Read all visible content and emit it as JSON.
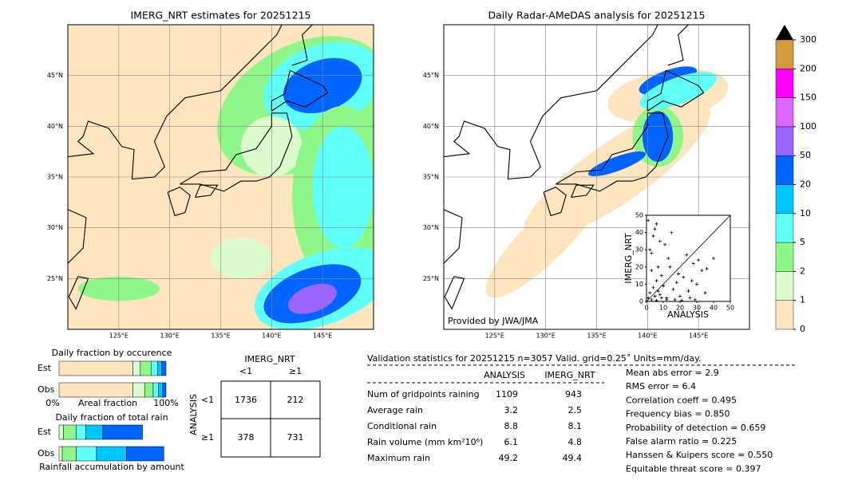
{
  "left_map": {
    "title": "IMERG_NRT estimates for 20251215",
    "lat_labels": [
      "45°N",
      "40°N",
      "35°N",
      "30°N",
      "25°N"
    ],
    "lon_labels": [
      "125°E",
      "130°E",
      "135°E",
      "140°E",
      "145°E"
    ]
  },
  "right_map": {
    "title": "Daily Radar-AMeDAS analysis for 20251215",
    "lat_labels": [
      "45°N",
      "40°N",
      "35°N",
      "30°N",
      "25°N"
    ],
    "lon_labels": [
      "125°E",
      "130°E",
      "135°E",
      "140°E",
      "145°E"
    ],
    "credit": "Provided by JWA/JMA"
  },
  "scatter": {
    "xlabel": "ANALYSIS",
    "ylabel": "IMERG_NRT",
    "xlim": [
      0,
      50
    ],
    "ylim": [
      0,
      50
    ],
    "xticks": [
      0,
      10,
      20,
      30,
      40,
      50
    ],
    "yticks": [
      0,
      10,
      20,
      30,
      40,
      50
    ],
    "x": [
      1,
      2,
      3,
      4,
      5,
      6,
      7,
      8,
      9,
      10,
      12,
      14,
      16,
      18,
      20,
      22,
      25,
      28,
      30,
      33,
      35,
      40,
      2,
      4,
      6,
      8,
      3,
      5,
      7,
      11,
      13,
      15,
      19,
      24,
      27,
      31,
      36,
      1,
      3,
      9,
      12,
      6,
      17,
      21,
      26,
      29
    ],
    "y": [
      2,
      5,
      1,
      8,
      3,
      12,
      6,
      4,
      15,
      9,
      2,
      20,
      7,
      11,
      3,
      14,
      6,
      22,
      10,
      18,
      5,
      25,
      30,
      38,
      45,
      35,
      28,
      42,
      20,
      33,
      25,
      40,
      16,
      27,
      12,
      24,
      19,
      47,
      18,
      2,
      1,
      0.5,
      1,
      0.5,
      2,
      1
    ]
  },
  "colorbar": {
    "ticks": [
      "0",
      "1",
      "2",
      "5",
      "10",
      "20",
      "50",
      "100",
      "150",
      "200",
      "300"
    ],
    "colors": [
      "#fde6bf",
      "#dcfbcf",
      "#8ff78a",
      "#5ffff7",
      "#00c8ff",
      "#0064ff",
      "#9966ff",
      "#dd66ff",
      "#ff00ff",
      "#d49a3c"
    ]
  },
  "occurrence": {
    "title": "Daily fraction by occurence",
    "rows": [
      "Est",
      "Obs"
    ],
    "xlabel": "Areal fraction",
    "xmin_label": "0%",
    "xmax_label": "100%",
    "colors": [
      "#fde6bf",
      "#dcfbcf",
      "#8ff78a",
      "#5ffff7",
      "#00c8ff",
      "#0064ff"
    ],
    "values": [
      [
        0.69,
        0.07,
        0.1,
        0.06,
        0.04,
        0.04
      ],
      [
        0.69,
        0.11,
        0.08,
        0.05,
        0.04,
        0.03
      ]
    ]
  },
  "total_rain": {
    "title": "Daily fraction of total rain",
    "rows": [
      "Est",
      "Obs"
    ],
    "xlabel": "Rainfall accumulation by amount",
    "colors": [
      "#dcfbcf",
      "#8ff78a",
      "#5ffff7",
      "#00c8ff",
      "#0064ff"
    ],
    "values": [
      [
        0.04,
        0.12,
        0.09,
        0.16,
        0.37
      ],
      [
        0.03,
        0.13,
        0.19,
        0.28,
        0.35
      ]
    ]
  },
  "contingency": {
    "col_title": "IMERG_NRT",
    "row_title": "ANALYSIS",
    "cols": [
      "<1",
      "≥1"
    ],
    "rows": [
      "<1",
      "≥1"
    ],
    "cells": [
      [
        "1736",
        "212"
      ],
      [
        "378",
        "731"
      ]
    ]
  },
  "stats": {
    "header": "Validation statistics for 20251215  n=3057 Valid. grid=0.25˚ Units=mm/day.",
    "columns": [
      "ANALYSIS",
      "IMERG_NRT"
    ],
    "rows": [
      [
        "Num of gridpoints raining",
        "1109",
        "943"
      ],
      [
        "Average rain",
        "3.2",
        "2.5"
      ],
      [
        "Conditional rain",
        "8.8",
        "8.1"
      ],
      [
        "Rain volume (mm km²10⁶)",
        "6.1",
        "4.8"
      ],
      [
        "Maximum rain",
        "49.2",
        "49.4"
      ]
    ],
    "scores": [
      "Mean abs error =    2.9",
      "RMS error =    6.4",
      "Correlation coeff =  0.495",
      "Frequency bias =  0.850",
      "Probability of detection =  0.659",
      "False alarm ratio =  0.225",
      "Hanssen & Kuipers score =  0.550",
      "Equitable threat score =  0.397"
    ]
  }
}
